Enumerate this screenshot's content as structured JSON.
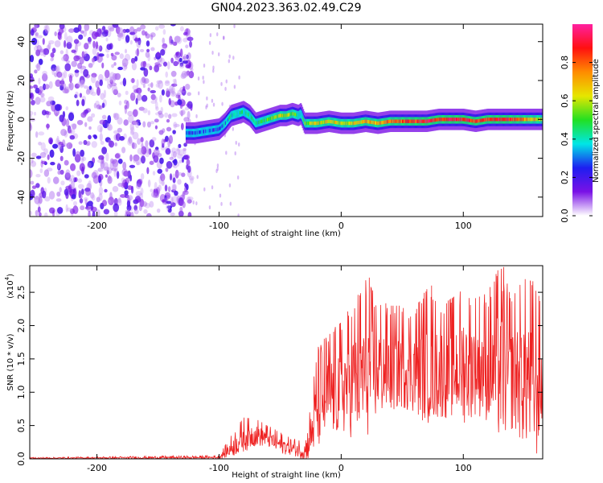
{
  "title": "GN04.2023.363.02.49.C29",
  "colorbar": {
    "label": "Normalized spectral amplitude",
    "ticks": [
      0.0,
      0.2,
      0.4,
      0.6,
      0.8
    ],
    "tick_labels": [
      "0.0",
      "0.2",
      "0.4",
      "0.6",
      "0.8"
    ],
    "stops": [
      "#ffffff",
      "#7a12e6",
      "#1e1ef0",
      "#00e6e6",
      "#22e022",
      "#e6e600",
      "#ff8c00",
      "#ff1010",
      "#ff20a0"
    ]
  },
  "chart_data": [
    {
      "type": "heatmap",
      "xlabel": "Height of straight line (km)",
      "ylabel": "Frequency (Hz)",
      "xlim": [
        -255,
        165
      ],
      "ylim": [
        -50,
        49
      ],
      "xticks": [
        -200,
        -100,
        0,
        100
      ],
      "xtick_labels": [
        "-200",
        "-100",
        "0",
        "100"
      ],
      "yticks": [
        -40,
        -20,
        0,
        20,
        40
      ],
      "ytick_labels": [
        "-40",
        "-20",
        "0",
        "20",
        "40"
      ],
      "noise_region_x": [
        -255,
        -122
      ],
      "ridge": {
        "x": [
          -127,
          -120,
          -110,
          -100,
          -95,
          -90,
          -85,
          -80,
          -75,
          -70,
          -65,
          -60,
          -55,
          -50,
          -45,
          -40,
          -35,
          -33,
          -30,
          -20,
          -10,
          0,
          10,
          20,
          30,
          40,
          50,
          60,
          70,
          80,
          90,
          100,
          110,
          120,
          130,
          140,
          150,
          160,
          165
        ],
        "y": [
          -7,
          -7,
          -6,
          -5,
          -2,
          2,
          3,
          4,
          2,
          -2,
          -1,
          0,
          1,
          2,
          2,
          3,
          2,
          3,
          -2,
          -2,
          -1,
          -2,
          -2,
          -1,
          -2,
          -1,
          -1,
          -1,
          -1,
          0,
          0,
          0,
          -1,
          0,
          0,
          0,
          0,
          0,
          0
        ],
        "amplitude": [
          0.25,
          0.3,
          0.3,
          0.25,
          0.35,
          0.4,
          0.45,
          0.4,
          0.45,
          0.4,
          0.45,
          0.5,
          0.55,
          0.6,
          0.6,
          0.55,
          0.45,
          0.3,
          0.55,
          0.6,
          0.65,
          0.6,
          0.65,
          0.7,
          0.7,
          0.75,
          0.8,
          0.85,
          0.9,
          0.85,
          0.9,
          0.9,
          0.85,
          0.85,
          0.9,
          0.85,
          0.75,
          0.65,
          0.55
        ]
      }
    },
    {
      "type": "line",
      "xlabel": "Height of straight line (km)",
      "ylabel": "SNR (10 * v/v)",
      "scale_label": "(x10",
      "scale_exponent": "4",
      "scale_close": ")",
      "xlim": [
        -255,
        165
      ],
      "ylim": [
        0,
        2.9
      ],
      "xticks": [
        -200,
        -100,
        0,
        100
      ],
      "xtick_labels": [
        "-200",
        "-100",
        "0",
        "100"
      ],
      "yticks": [
        0.0,
        0.5,
        1.0,
        1.5,
        2.0,
        2.5
      ],
      "ytick_labels": [
        "0.0",
        "0.5",
        "1.0",
        "1.5",
        "2.0",
        "2.5"
      ],
      "color": "#ee2222",
      "series": [
        {
          "x": [
            -255,
            -100,
            -90,
            -80,
            -70,
            -60,
            -50,
            -40,
            -30,
            -25,
            -20,
            -10,
            0,
            10,
            20,
            30,
            40,
            50,
            60,
            70,
            80,
            90,
            100,
            110,
            120,
            130,
            140,
            150,
            160,
            165
          ],
          "y": [
            0.01,
            0.02,
            0.15,
            0.3,
            0.35,
            0.3,
            0.2,
            0.15,
            0.1,
            0.3,
            0.7,
            0.9,
            1.0,
            1.1,
            1.2,
            1.3,
            1.3,
            1.35,
            1.3,
            1.3,
            1.25,
            1.3,
            1.3,
            1.35,
            1.3,
            1.25,
            1.2,
            1.15,
            1.0,
            1.1
          ],
          "envelope": [
            0.02,
            0.05,
            0.35,
            0.62,
            0.6,
            0.5,
            0.4,
            0.3,
            0.3,
            0.8,
            1.65,
            1.9,
            2.05,
            2.35,
            2.7,
            2.4,
            2.3,
            2.3,
            2.3,
            2.55,
            2.3,
            2.4,
            2.55,
            2.45,
            2.5,
            2.9,
            2.45,
            2.7,
            2.65,
            2.1
          ]
        }
      ],
      "peak_markers": [
        {
          "x": 23,
          "y": 2.72
        },
        {
          "x": 74,
          "y": 2.6
        },
        {
          "x": 133,
          "y": 2.88
        },
        {
          "x": 155,
          "y": 2.66
        }
      ]
    }
  ]
}
